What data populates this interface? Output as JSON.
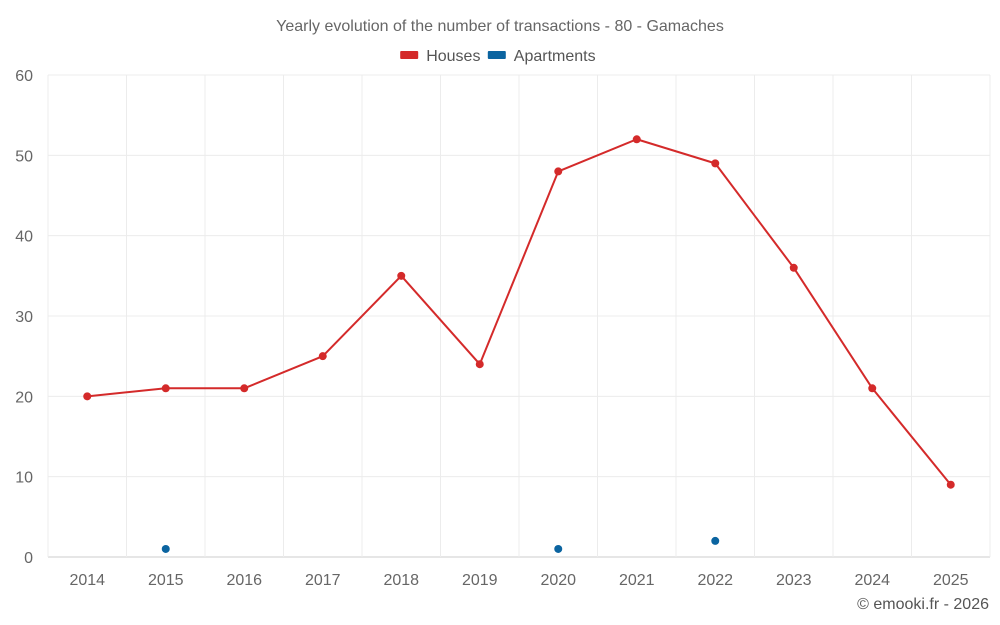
{
  "chart_data": {
    "type": "line",
    "title": "Yearly evolution of the number of transactions - 80 - Gamaches",
    "xlabel": "",
    "ylabel": "",
    "ylim": [
      0,
      60
    ],
    "yticks": [
      "0",
      "10",
      "20",
      "30",
      "40",
      "50",
      "60"
    ],
    "categories": [
      "2014",
      "2015",
      "2016",
      "2017",
      "2018",
      "2019",
      "2020",
      "2021",
      "2022",
      "2023",
      "2024",
      "2025"
    ],
    "series": [
      {
        "name": "Houses",
        "color": "#d42a2a",
        "values": [
          20,
          21,
          21,
          25,
          35,
          24,
          48,
          52,
          49,
          36,
          21,
          9
        ]
      },
      {
        "name": "Apartments",
        "color": "#0b64a0",
        "values": [
          null,
          1,
          null,
          null,
          null,
          null,
          1,
          null,
          2,
          null,
          null,
          null
        ]
      }
    ],
    "grid": true,
    "legend_position": "top-center"
  },
  "credit": "© emooki.fr - 2026"
}
